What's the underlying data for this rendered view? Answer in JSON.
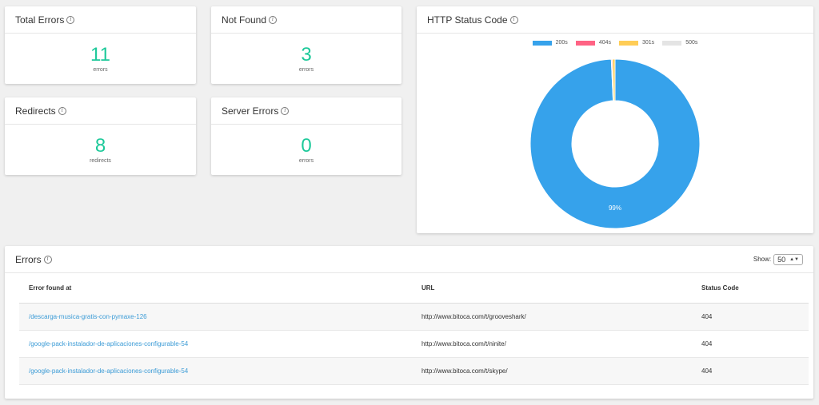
{
  "stats": [
    {
      "title": "Total Errors",
      "value": "11",
      "unit": "errors"
    },
    {
      "title": "Not Found",
      "value": "3",
      "unit": "errors"
    },
    {
      "title": "Redirects",
      "value": "8",
      "unit": "redirects"
    },
    {
      "title": "Server Errors",
      "value": "0",
      "unit": "errors"
    }
  ],
  "info_icon_glyph": "i",
  "http_chart": {
    "title": "HTTP Status Code",
    "percent_label": "99%",
    "chart_data": {
      "type": "pie",
      "categories": [
        "200s",
        "404s",
        "301s",
        "500s"
      ],
      "values": [
        99,
        0.2,
        0.5,
        0
      ],
      "colors": [
        "#36a2eb",
        "#ff6384",
        "#ffcd56",
        "#e4e4e4"
      ],
      "legend": "top"
    }
  },
  "errors": {
    "title": "Errors",
    "show_label": "Show:",
    "show_value": "50",
    "show_arrows": "▲▼",
    "columns": [
      "Error found at",
      "URL",
      "Status Code"
    ],
    "rows": [
      {
        "path": "/descarga-musica-gratis-con-pymaxe-126",
        "url": "http://www.bitoca.com/t/grooveshark/",
        "status": "404"
      },
      {
        "path": "/google-pack-instalador-de-aplicaciones-configurable-54",
        "url": "http://www.bitoca.com/t/ninite/",
        "status": "404"
      },
      {
        "path": "/google-pack-instalador-de-aplicaciones-configurable-54",
        "url": "http://www.bitoca.com/t/skype/",
        "status": "404"
      }
    ]
  }
}
